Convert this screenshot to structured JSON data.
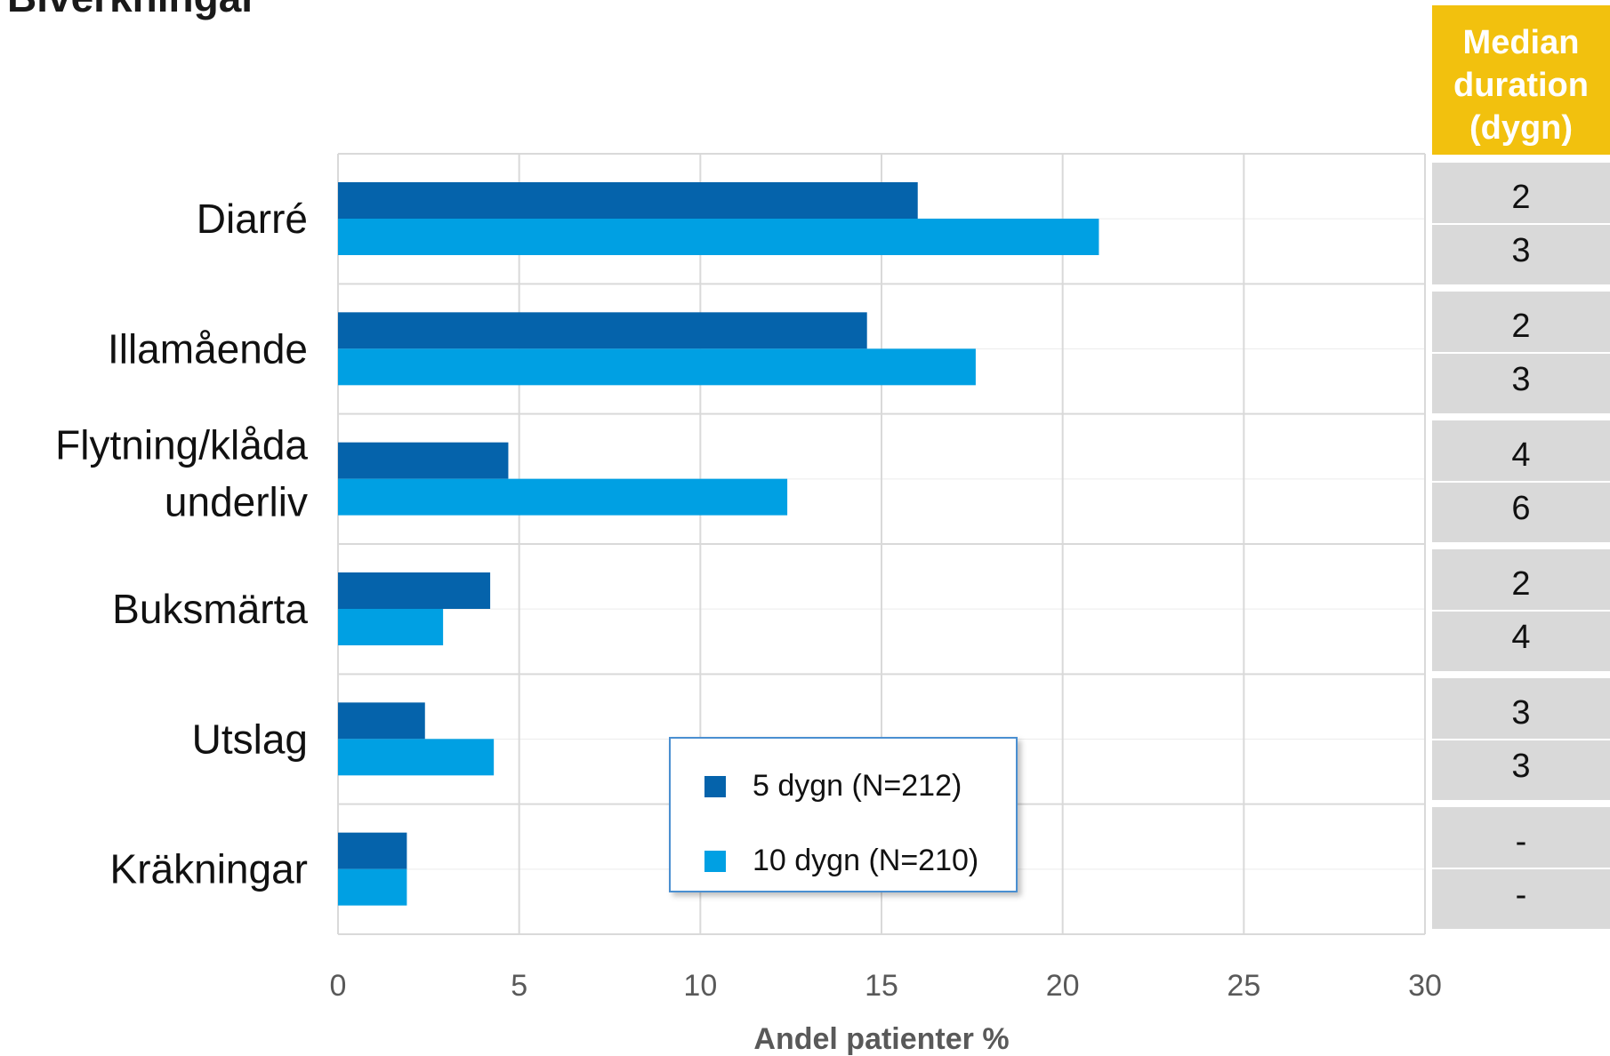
{
  "title": "Biverkningar",
  "colors": {
    "series_5": "#0563ab",
    "series_10": "#00a0e3",
    "header_bg": "#f2c10e",
    "side_bg": "#d9d9d9",
    "grid": "#d9d9d9"
  },
  "side_table": {
    "header": [
      "Median",
      "duration",
      "(dygn)"
    ],
    "rows": [
      [
        "2",
        "3"
      ],
      [
        "2",
        "3"
      ],
      [
        "4",
        "6"
      ],
      [
        "2",
        "4"
      ],
      [
        "3",
        "3"
      ],
      [
        "-",
        "-"
      ]
    ]
  },
  "chart_data": {
    "type": "bar",
    "orientation": "horizontal",
    "title": "",
    "xlabel": "Andel patienter %",
    "ylabel": "",
    "xlim": [
      0,
      30
    ],
    "xticks": [
      "0",
      "5",
      "10",
      "15",
      "20",
      "25",
      "30"
    ],
    "grid": true,
    "legend_position": "bottom-center",
    "categories": [
      "Diarré",
      "Illamående",
      "Flytning/klåda underliv",
      "Buksmärta",
      "Utslag",
      "Kräkningar"
    ],
    "series": [
      {
        "name": "5 dygn (N=212)",
        "values": [
          16,
          14.6,
          4.7,
          4.2,
          2.4,
          1.9
        ]
      },
      {
        "name": "10 dygn (N=210)",
        "values": [
          21,
          17.6,
          12.4,
          2.9,
          4.3,
          1.9
        ]
      }
    ]
  }
}
